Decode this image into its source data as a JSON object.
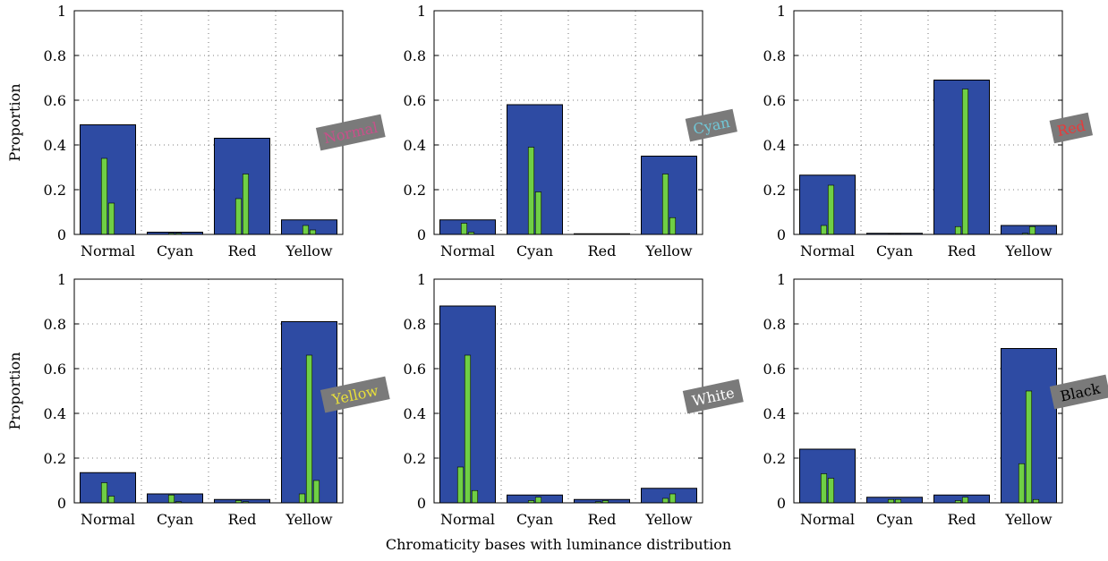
{
  "colors": {
    "main_bar": "#2e4ba3",
    "sub_bar": "#6fcf45",
    "tag_bg": "#7a7a7a"
  },
  "chart_data": {
    "xlabel": "Chromaticity bases with luminance distribution",
    "ylabel": "Proportion",
    "type": "bar",
    "grid": true,
    "ylim": [
      0,
      1
    ],
    "yticks": [
      "0",
      "0.2",
      "0.4",
      "0.6",
      "0.8",
      "1"
    ],
    "categories": [
      "Normal",
      "Cyan",
      "Red",
      "Yellow"
    ],
    "panels": [
      {
        "tag": "Normal",
        "tag_color": "#c8508a",
        "values": [
          0.49,
          0.01,
          0.43,
          0.065
        ],
        "luminance": [
          [
            0.34,
            0.14
          ],
          [
            0.005,
            0.005
          ],
          [
            0.16,
            0.27
          ],
          [
            0.04,
            0.02
          ]
        ]
      },
      {
        "tag": "Cyan",
        "tag_color": "#70c8d8",
        "values": [
          0.065,
          0.58,
          0.003,
          0.35
        ],
        "luminance": [
          [
            0.05,
            0.01
          ],
          [
            0.39,
            0.19
          ],
          [
            0.002,
            0.001
          ],
          [
            0.27,
            0.075
          ]
        ]
      },
      {
        "tag": "Red",
        "tag_color": "#e83a3a",
        "values": [
          0.265,
          0.005,
          0.69,
          0.04
        ],
        "luminance": [
          [
            0.04,
            0.22
          ],
          [
            0.002,
            0.002
          ],
          [
            0.035,
            0.65
          ],
          [
            0.005,
            0.035
          ]
        ]
      },
      {
        "tag": "Yellow",
        "tag_color": "#e8e03a",
        "values": [
          0.135,
          0.04,
          0.015,
          0.81
        ],
        "luminance": [
          [
            0.09,
            0.03
          ],
          [
            0.035,
            0.005
          ],
          [
            0.01,
            0.005
          ],
          [
            0.04,
            0.66,
            0.1
          ]
        ]
      },
      {
        "tag": "White",
        "tag_color": "#ffffff",
        "values": [
          0.88,
          0.035,
          0.015,
          0.065
        ],
        "luminance": [
          [
            0.16,
            0.66,
            0.055
          ],
          [
            0.01,
            0.025
          ],
          [
            0.005,
            0.01
          ],
          [
            0.02,
            0.04
          ]
        ]
      },
      {
        "tag": "Black",
        "tag_color": "#000000",
        "values": [
          0.24,
          0.025,
          0.035,
          0.69
        ],
        "luminance": [
          [
            0.13,
            0.11
          ],
          [
            0.015,
            0.015
          ],
          [
            0.01,
            0.025
          ],
          [
            0.175,
            0.5,
            0.015
          ]
        ]
      }
    ]
  }
}
